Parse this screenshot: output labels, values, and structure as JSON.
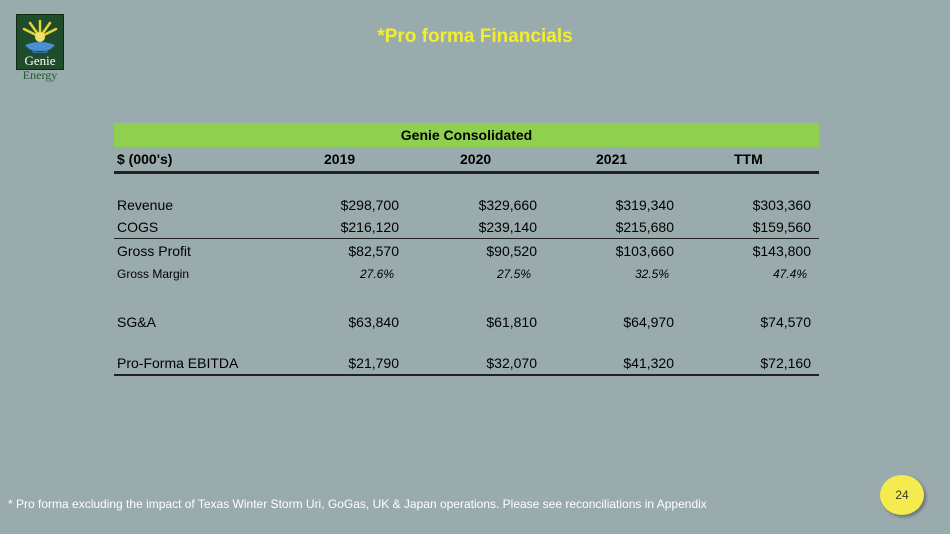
{
  "logo": {
    "line1": "Genie",
    "line2": "Energy"
  },
  "title": "*Pro forma Financials",
  "table": {
    "band": "Genie Consolidated",
    "header": {
      "label": "$ (000's)",
      "cols": [
        "2019",
        "2020",
        "2021",
        "TTM"
      ]
    },
    "rows": {
      "revenue": {
        "label": "Revenue",
        "values": [
          "$298,700",
          "$329,660",
          "$319,340",
          "$303,360"
        ]
      },
      "cogs": {
        "label": "COGS",
        "values": [
          "$216,120",
          "$239,140",
          "$215,680",
          "$159,560"
        ]
      },
      "gross_profit": {
        "label": "Gross Profit",
        "values": [
          "$82,570",
          "$90,520",
          "$103,660",
          "$143,800"
        ]
      },
      "gross_margin": {
        "label": "Gross Margin",
        "values": [
          "27.6%",
          "27.5%",
          "32.5%",
          "47.4%"
        ]
      },
      "sga": {
        "label": "SG&A",
        "values": [
          "$63,840",
          "$61,810",
          "$64,970",
          "$74,570"
        ]
      },
      "ebitda": {
        "label": "Pro-Forma EBITDA",
        "values": [
          "$21,790",
          "$32,070",
          "$41,320",
          "$72,160"
        ]
      }
    }
  },
  "footnote": "* Pro forma excluding the impact of Texas Winter Storm Uri, GoGas, UK & Japan operations.  Please see reconciliations in Appendix",
  "page_number": "24",
  "colors": {
    "background": "#9aabae",
    "title": "#f5ee2a",
    "band": "#8fd14f",
    "page_badge": "#f4ec4e"
  },
  "icons": {
    "logo": "genie-lamp-icon"
  }
}
